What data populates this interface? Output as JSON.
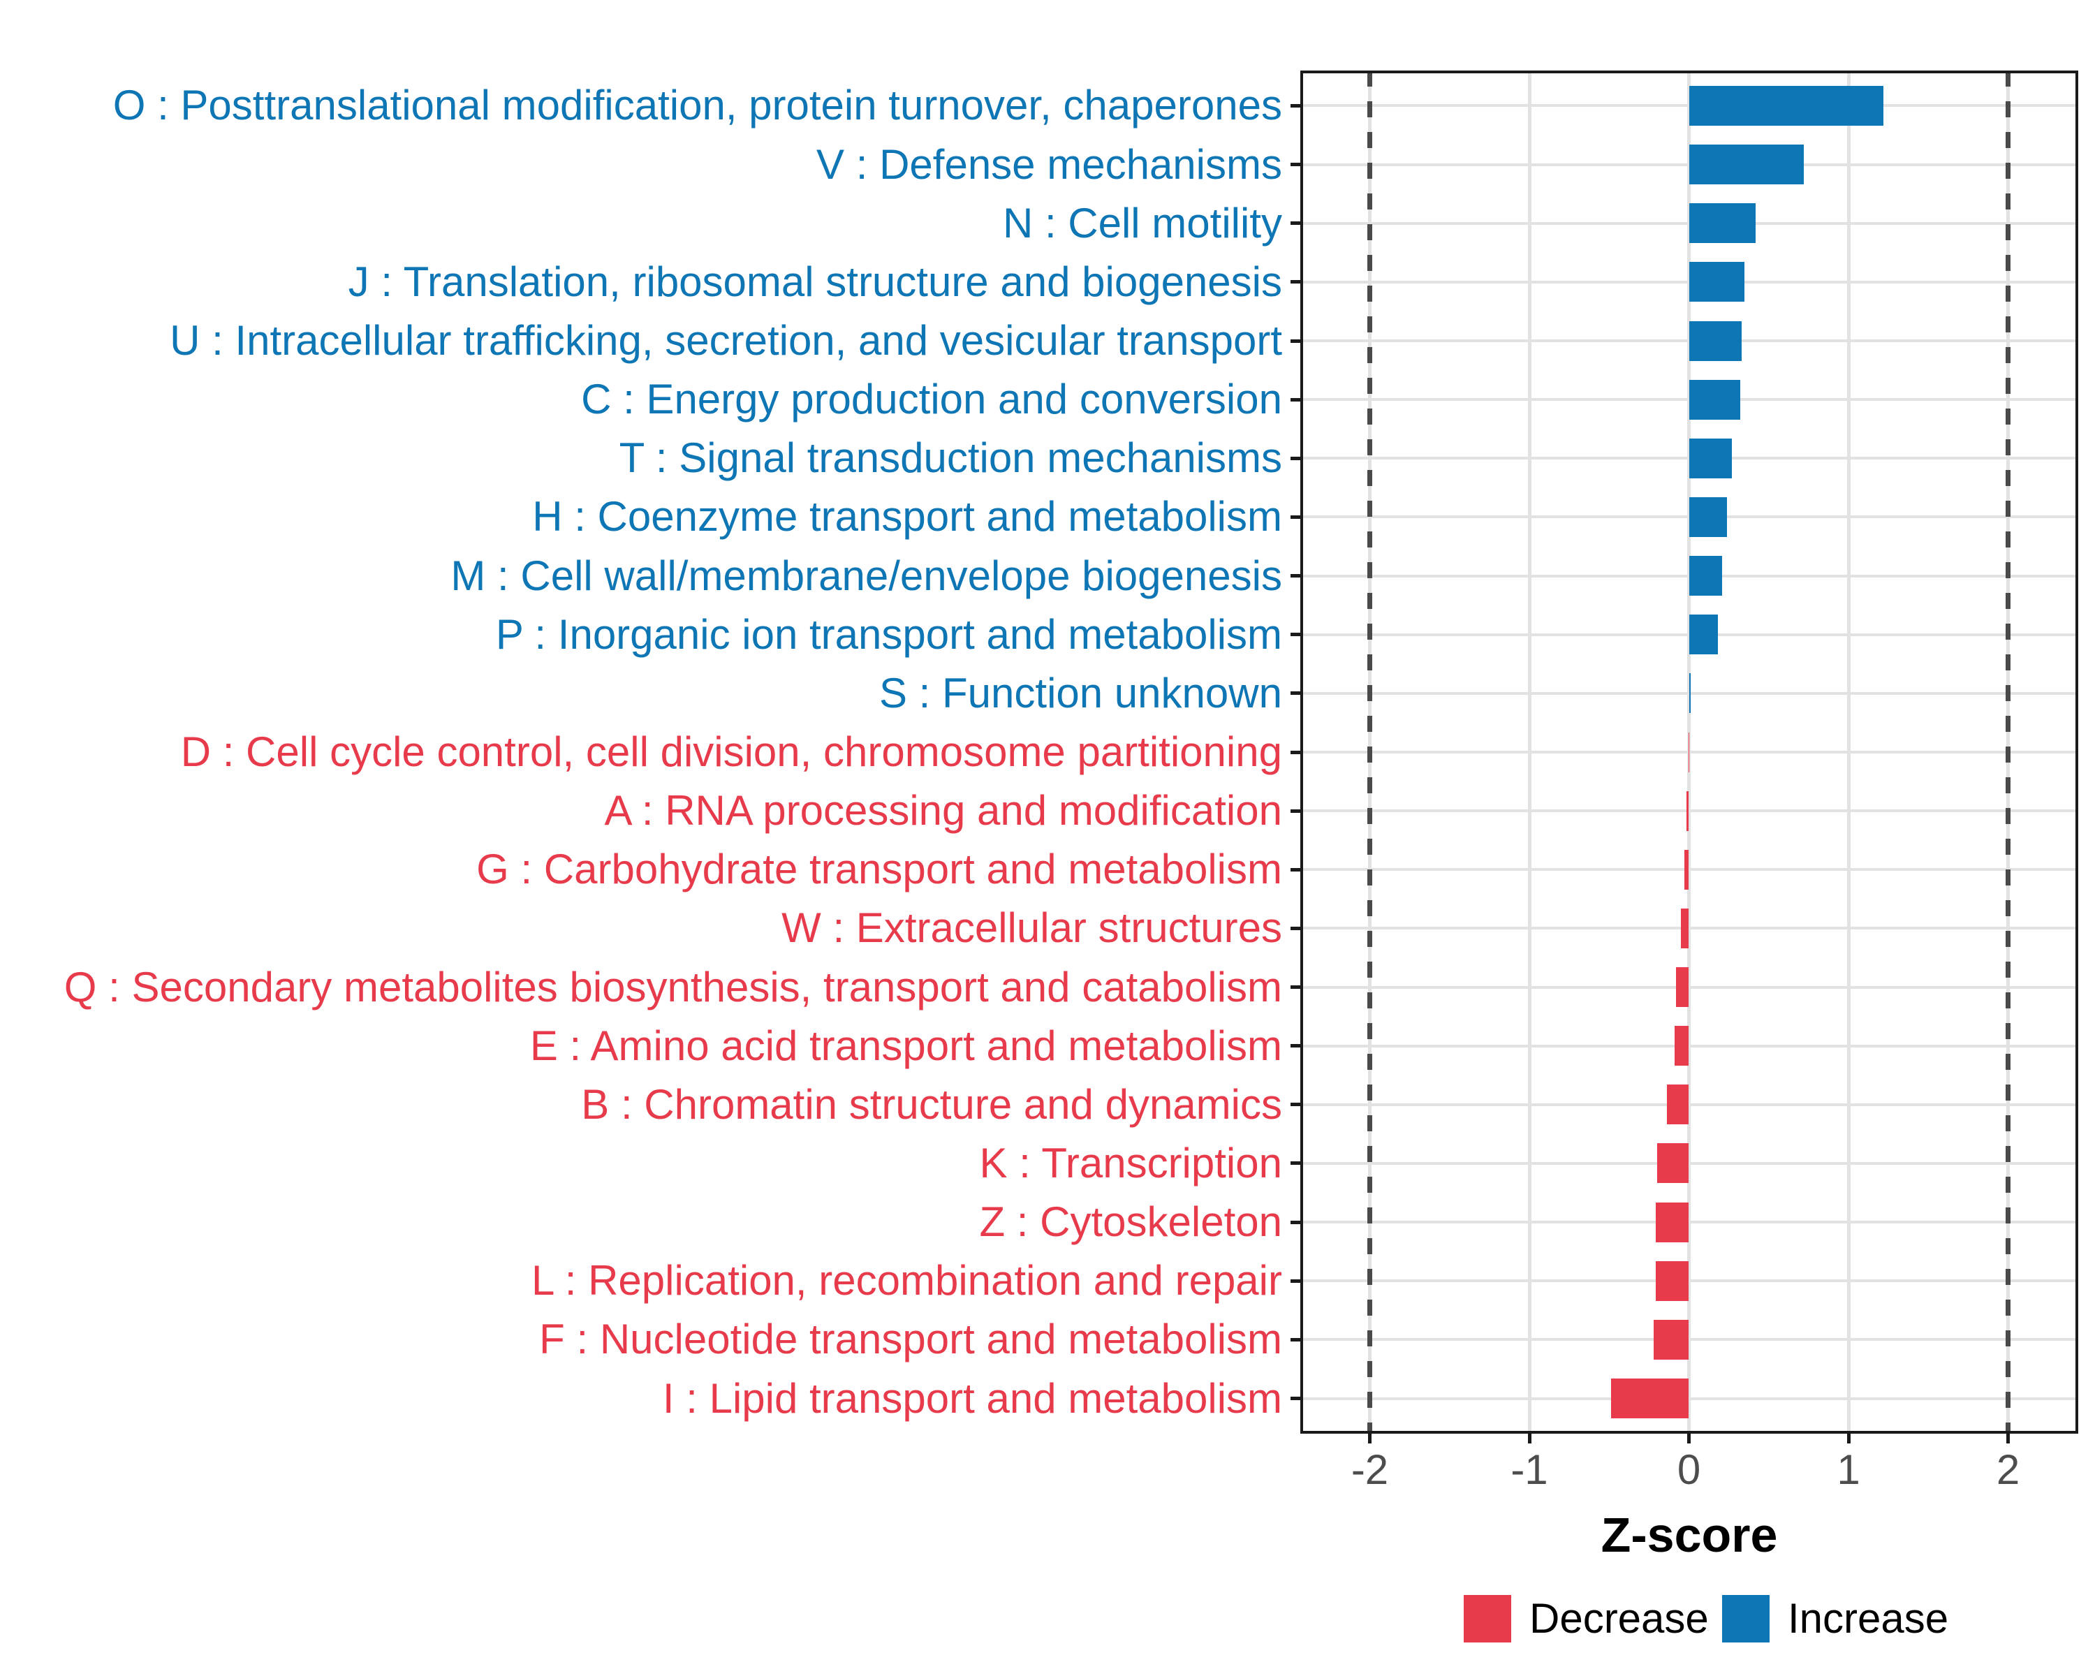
{
  "chart_data": {
    "type": "bar",
    "orientation": "horizontal",
    "title": "",
    "x_axis": {
      "title": "Z-score",
      "ticks": [
        "-2",
        "-1",
        "0",
        "1",
        "2"
      ],
      "tick_values": [
        -2,
        -1,
        0,
        1,
        2
      ],
      "range_shown": [
        -2.44,
        2.44
      ],
      "grid": "on"
    },
    "reference_lines": {
      "style": "dashed",
      "values": [
        -2,
        2
      ]
    },
    "legend": {
      "position": "bottom-right",
      "items": [
        {
          "label": "Decrease",
          "color_key": "decrease"
        },
        {
          "label": "Increase",
          "color_key": "increase"
        }
      ]
    },
    "categories": [
      {
        "label": "O : Posttranslational modification, protein turnover, chaperones",
        "value": 1.22,
        "group": "Increase"
      },
      {
        "label": "V : Defense mechanisms",
        "value": 0.72,
        "group": "Increase"
      },
      {
        "label": "N : Cell motility",
        "value": 0.42,
        "group": "Increase"
      },
      {
        "label": "J : Translation, ribosomal structure and biogenesis",
        "value": 0.35,
        "group": "Increase"
      },
      {
        "label": "U : Intracellular trafficking, secretion, and vesicular transport",
        "value": 0.33,
        "group": "Increase"
      },
      {
        "label": "C : Energy production and conversion",
        "value": 0.32,
        "group": "Increase"
      },
      {
        "label": "T : Signal transduction mechanisms",
        "value": 0.27,
        "group": "Increase"
      },
      {
        "label": "H : Coenzyme transport and metabolism",
        "value": 0.24,
        "group": "Increase"
      },
      {
        "label": "M : Cell wall/membrane/envelope biogenesis",
        "value": 0.21,
        "group": "Increase"
      },
      {
        "label": "P : Inorganic ion transport and metabolism",
        "value": 0.18,
        "group": "Increase"
      },
      {
        "label": "S : Function unknown",
        "value": 0.01,
        "group": "Increase"
      },
      {
        "label": "D : Cell cycle control, cell division, chromosome partitioning",
        "value": -0.003,
        "group": "Decrease"
      },
      {
        "label": "A : RNA processing and modification",
        "value": -0.015,
        "group": "Decrease"
      },
      {
        "label": "G : Carbohydrate transport and metabolism",
        "value": -0.03,
        "group": "Decrease"
      },
      {
        "label": "W : Extracellular structures",
        "value": -0.05,
        "group": "Decrease"
      },
      {
        "label": "Q : Secondary metabolites biosynthesis, transport and catabolism",
        "value": -0.08,
        "group": "Decrease"
      },
      {
        "label": "E : Amino acid transport and metabolism",
        "value": -0.09,
        "group": "Decrease"
      },
      {
        "label": "B : Chromatin structure and dynamics",
        "value": -0.14,
        "group": "Decrease"
      },
      {
        "label": "K : Transcription",
        "value": -0.2,
        "group": "Decrease"
      },
      {
        "label": "Z : Cytoskeleton",
        "value": -0.21,
        "group": "Decrease"
      },
      {
        "label": "L : Replication, recombination and repair",
        "value": -0.21,
        "group": "Decrease"
      },
      {
        "label": "F : Nucleotide transport and metabolism",
        "value": -0.22,
        "group": "Decrease"
      },
      {
        "label": "I : Lipid transport and metabolism",
        "value": -0.49,
        "group": "Decrease"
      }
    ]
  },
  "colors": {
    "increase": "#0E76B4",
    "decrease": "#E73B4C",
    "grid": "#E2E2E2",
    "refline": "#4A4A4A",
    "axis_tick_text": "#4D4D4D",
    "panel_border": "#1A1A1A"
  }
}
